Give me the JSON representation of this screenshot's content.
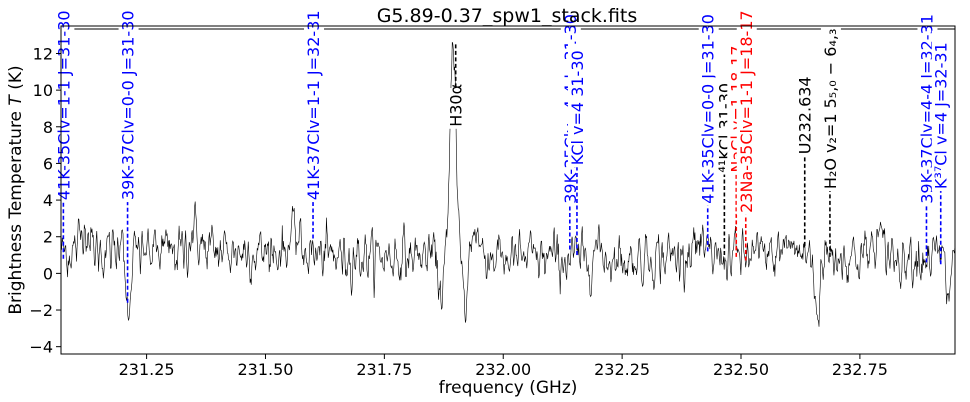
{
  "chart_data": {
    "type": "line",
    "title": "G5.89-0.37_spw1_stack.fits",
    "xlabel": "frequency (GHz)",
    "ylabel": "Brightness Temperature $T$ (K)",
    "xlim": [
      231.07,
      232.95
    ],
    "ylim": [
      -4.4,
      13.5
    ],
    "x_ticks": [
      231.25,
      231.5,
      231.75,
      232.0,
      232.25,
      232.5,
      232.75
    ],
    "x_tick_labels": [
      "231.25",
      "231.50",
      "231.75",
      "232.00",
      "232.25",
      "232.50",
      "232.75"
    ],
    "y_ticks": [
      -4,
      -2,
      0,
      2,
      4,
      6,
      8,
      10,
      12
    ],
    "y_tick_labels": [
      "−4",
      "−2",
      "0",
      "2",
      "4",
      "6",
      "8",
      "10",
      "12"
    ],
    "grid": false,
    "colors": {
      "spectrum": "#000000",
      "blue": "#0000ff",
      "red": "#ff0000",
      "black": "#000000"
    },
    "spectrum_features": [
      {
        "x": 231.21,
        "y": -3.5,
        "width": 0.006
      },
      {
        "x": 231.2,
        "y": 3.3,
        "width": 0.005
      },
      {
        "x": 231.87,
        "y": -1.0,
        "width": 0.006
      },
      {
        "x": 231.895,
        "y": 13.0,
        "width": 0.006
      },
      {
        "x": 231.92,
        "y": -2.2,
        "width": 0.005
      },
      {
        "x": 231.94,
        "y": 2.5,
        "width": 0.008
      },
      {
        "x": 232.2,
        "y": 1.5,
        "width": 0.01
      },
      {
        "x": 232.4,
        "y": 1.5,
        "width": 0.01
      },
      {
        "x": 232.66,
        "y": -2.2,
        "width": 0.005
      },
      {
        "x": 232.6,
        "y": 1.6,
        "width": 0.012
      },
      {
        "x": 232.79,
        "y": 1.7,
        "width": 0.012
      },
      {
        "x": 232.935,
        "y": -1.3,
        "width": 0.005
      },
      {
        "x": 231.56,
        "y": 1.8,
        "width": 0.01
      },
      {
        "x": 231.35,
        "y": 2.0,
        "width": 0.01
      },
      {
        "x": 231.12,
        "y": 2.5,
        "width": 0.008
      }
    ],
    "line_markers": [
      {
        "label": "41K-35Clv=1-1 J=31-30",
        "x": 231.075,
        "y_line": 0.8,
        "y_label": 4.0,
        "color": "blue"
      },
      {
        "label": "39K-37Clv=0-0 J=31-30",
        "x": 231.21,
        "y_line": -1.6,
        "y_label": 4.0,
        "color": "blue"
      },
      {
        "label": "41K-37Clv=1-1 J=32-31",
        "x": 231.6,
        "y_line": 1.9,
        "y_label": 4.0,
        "color": "blue"
      },
      {
        "label": "H30α",
        "x": 231.9,
        "y_line": 12.5,
        "y_label": 8.0,
        "color": "black"
      },
      {
        "label": "39K-35Clv=4-4 J=31-30",
        "x": 232.14,
        "y_line": 1.3,
        "y_label": 3.8,
        "color": "blue"
      },
      {
        "label": "KCl v=4 31-30",
        "x": 232.155,
        "y_line": 1.0,
        "y_label": 5.9,
        "color": "blue"
      },
      {
        "label": "41K-35Clv=0-0 J=31-30",
        "x": 232.43,
        "y_line": 1.2,
        "y_label": 3.8,
        "color": "blue"
      },
      {
        "label": "⁴¹KCl 31-30",
        "x": 232.465,
        "y_line": 1.0,
        "y_label": 5.5,
        "color": "black"
      },
      {
        "label": "NaCl v=1 18-17",
        "x": 232.49,
        "y_line": 0.9,
        "y_label": 5.5,
        "color": "red"
      },
      {
        "label": "23Na-35Clv=1-1 J=18-17",
        "x": 232.51,
        "y_line": 0.7,
        "y_label": 3.3,
        "color": "red"
      },
      {
        "label": "U232.634",
        "x": 232.634,
        "y_line": 1.5,
        "y_label": 6.5,
        "color": "black"
      },
      {
        "label": "H₂O v₂=1 5₅,₀ − 6₄,₃",
        "x": 232.687,
        "y_line": 0.9,
        "y_label": 4.6,
        "color": "black"
      },
      {
        "label": "39K-37Clv=4-4 J=32-31",
        "x": 232.89,
        "y_line": 0.6,
        "y_label": 3.8,
        "color": "blue"
      },
      {
        "label": "K³⁷Cl v=4 J=32-31",
        "x": 232.92,
        "y_line": 0.5,
        "y_label": 4.6,
        "color": "blue"
      }
    ]
  }
}
